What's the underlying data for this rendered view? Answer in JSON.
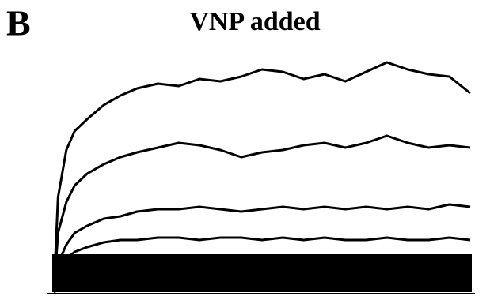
{
  "panel_label": "B",
  "chart_data": {
    "type": "line",
    "title": "VNP added",
    "color": "#000000",
    "x": [
      0,
      1,
      3,
      5,
      8,
      12,
      16,
      20,
      25,
      30,
      35,
      40,
      45,
      50,
      55,
      60,
      65,
      70,
      75,
      80,
      85,
      90,
      95,
      100
    ],
    "xlim": [
      0,
      100
    ],
    "ylim": [
      0,
      100
    ],
    "series": [
      {
        "values": [
          0,
          40,
          60,
          68,
          73,
          79,
          83,
          86,
          88,
          87,
          90,
          89,
          91,
          94,
          93,
          90,
          92,
          89,
          93,
          97,
          94,
          92,
          91,
          84
        ]
      },
      {
        "values": [
          0,
          25,
          38,
          45,
          50,
          54,
          57,
          59,
          61,
          63,
          62,
          60,
          57,
          59,
          60,
          62,
          63,
          61,
          63,
          66,
          63,
          61,
          62,
          61
        ]
      },
      {
        "values": [
          0,
          12,
          20,
          25,
          28,
          31,
          32,
          34,
          35,
          35,
          36,
          35,
          34,
          35,
          36,
          35,
          36,
          35,
          36,
          35,
          36,
          35,
          37,
          36
        ]
      },
      {
        "values": [
          0,
          8,
          14,
          17,
          19,
          21,
          22,
          22,
          23,
          23,
          22,
          23,
          23,
          22,
          23,
          22,
          23,
          22,
          22,
          23,
          22,
          22,
          23,
          22
        ]
      },
      {
        "values": [
          0,
          5,
          9,
          11,
          13,
          14,
          15,
          15,
          14,
          15,
          14,
          14,
          15,
          14,
          13,
          14,
          14,
          13,
          14,
          13,
          13,
          14,
          13,
          13
        ]
      },
      {
        "values": [
          0,
          4,
          6,
          8,
          9,
          10,
          10,
          10,
          10,
          9,
          10,
          10,
          9,
          10,
          9,
          9,
          10,
          9,
          9,
          9,
          9,
          9,
          9,
          9
        ]
      },
      {
        "values": [
          0,
          2,
          4,
          5,
          6,
          6,
          6,
          6,
          6,
          6,
          6,
          6,
          6,
          6,
          6,
          6,
          6,
          6,
          6,
          6,
          6,
          6,
          6,
          6
        ]
      },
      {
        "values": [
          0,
          1,
          2,
          3,
          3,
          3,
          3,
          3,
          3,
          3,
          3,
          3,
          3,
          3,
          3,
          3,
          3,
          3,
          3,
          3,
          3,
          3,
          3,
          3
        ]
      }
    ]
  }
}
